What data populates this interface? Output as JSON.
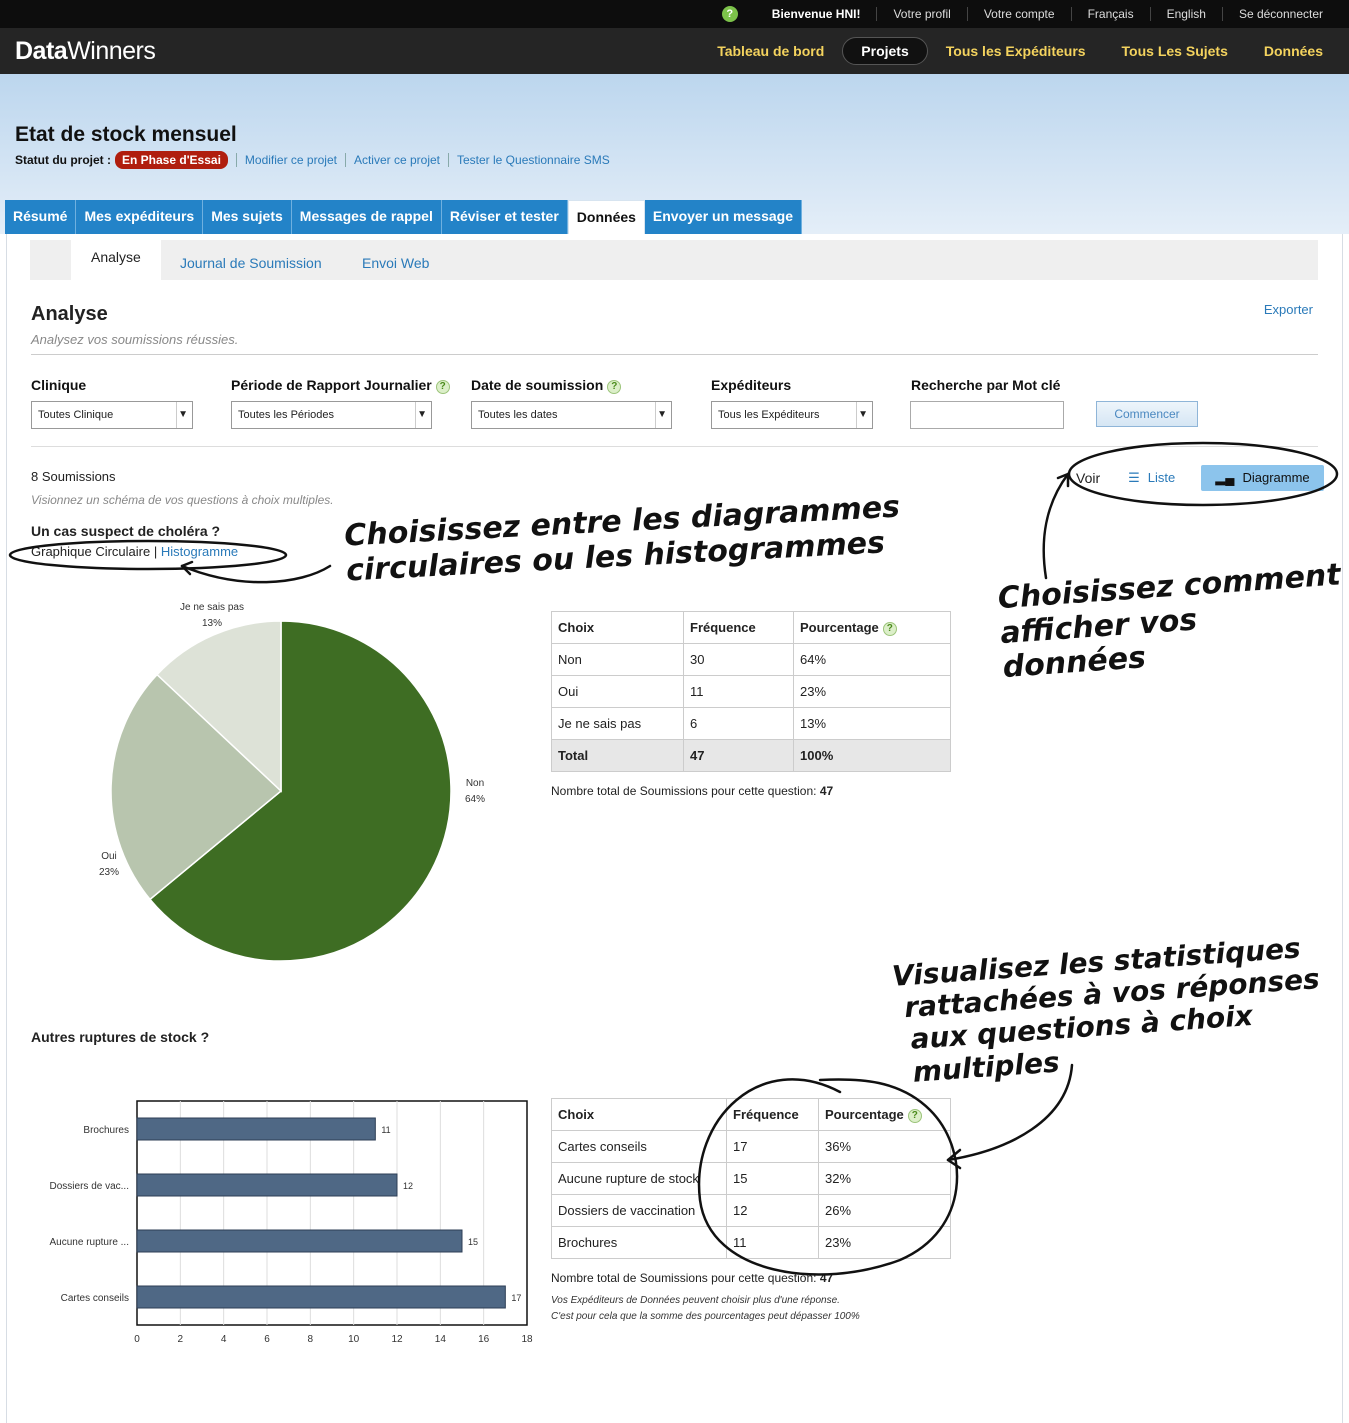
{
  "topbar": {
    "welcome": "Bienvenue HNI!",
    "links": [
      "Votre profil",
      "Votre compte",
      "Français",
      "English",
      "Se déconnecter"
    ]
  },
  "header": {
    "logo_bold": "Data",
    "logo_light": "Winners",
    "nav": [
      "Tableau de bord",
      "Projets",
      "Tous les Expéditeurs",
      "Tous Les Sujets",
      "Données"
    ]
  },
  "project": {
    "title": "Etat de stock mensuel",
    "status_label": "Statut du projet :",
    "status_badge": "En Phase d'Essai",
    "actions": [
      "Modifier ce projet",
      "Activer ce projet",
      "Tester le Questionnaire SMS"
    ]
  },
  "tabs": [
    "Résumé",
    "Mes expéditeurs",
    "Mes sujets",
    "Messages de rappel",
    "Réviser et tester",
    "Données",
    "Envoyer un message"
  ],
  "subtabs": [
    "Analyse",
    "Journal de Soumission",
    "Envoi Web"
  ],
  "analysis": {
    "title": "Analyse",
    "subtitle": "Analysez vos soumissions réussies.",
    "export": "Exporter"
  },
  "filters": {
    "clinique_label": "Clinique",
    "clinique_value": "Toutes Clinique",
    "periode_label": "Période de Rapport Journalier",
    "periode_value": "Toutes les Périodes",
    "date_label": "Date de soumission",
    "date_value": "Toutes les dates",
    "exp_label": "Expéditeurs",
    "exp_value": "Tous les Expéditeurs",
    "keyword_label": "Recherche par Mot clé",
    "keyword_value": "",
    "go_button": "Commencer"
  },
  "summary": {
    "count": "8 Soumissions",
    "hint": "Visionnez un schéma de vos questions à choix multiples.",
    "voir": "Voir",
    "liste": "Liste",
    "diagramme": "Diagramme"
  },
  "q1": {
    "title": "Un cas suspect de choléra ?",
    "toggle_active": "Graphique Circulaire",
    "toggle_link": "Histogramme",
    "headers": [
      "Choix",
      "Fréquence",
      "Pourcentage"
    ],
    "rows": [
      [
        "Non",
        "30",
        "64%"
      ],
      [
        "Oui",
        "11",
        "23%"
      ],
      [
        "Je ne sais pas",
        "6",
        "13%"
      ]
    ],
    "total": [
      "Total",
      "47",
      "100%"
    ],
    "note": "Nombre total de Soumissions pour cette question:",
    "note_value": "47"
  },
  "q2": {
    "title": "Autres ruptures de stock ?",
    "headers": [
      "Choix",
      "Fréquence",
      "Pourcentage"
    ],
    "rows": [
      [
        "Cartes conseils",
        "17",
        "36%"
      ],
      [
        "Aucune rupture de stock",
        "15",
        "32%"
      ],
      [
        "Dossiers de vaccination",
        "12",
        "26%"
      ],
      [
        "Brochures",
        "11",
        "23%"
      ]
    ],
    "note": "Nombre total de Soumissions pour cette question:",
    "note_value": "47",
    "fine1": "Vos Expéditeurs de Données peuvent choisir plus d'une réponse.",
    "fine2": "C'est pour cela que la somme des pourcentages peut dépasser 100%"
  },
  "chart_data": [
    {
      "type": "pie",
      "title": "Un cas suspect de choléra ?",
      "categories": [
        "Non",
        "Oui",
        "Je ne sais pas"
      ],
      "values": [
        64,
        23,
        13
      ],
      "labels": [
        "64%",
        "23%",
        "13%"
      ],
      "colors": [
        "#3e6d23",
        "#b8c5ae",
        "#dde2d7"
      ]
    },
    {
      "type": "bar",
      "orientation": "horizontal",
      "title": "Autres ruptures de stock ?",
      "categories": [
        "Brochures",
        "Dossiers de vac...",
        "Aucune rupture ...",
        "Cartes conseils"
      ],
      "values": [
        11,
        12,
        15,
        17
      ],
      "xlim": [
        0,
        18
      ],
      "xticks": [
        0,
        2,
        4,
        6,
        8,
        10,
        12,
        14,
        16,
        18
      ],
      "color": "#4f6885"
    }
  ],
  "annotations": {
    "a1_line1": "Choisissez entre les diagrammes",
    "a1_line2": "circulaires ou les histogrammes",
    "a2_line1": "Choisissez comment",
    "a2_line2": "afficher vos données",
    "a3_line1": "Visualisez les statistiques",
    "a3_line2": "rattachées à vos réponses",
    "a3_line3": "aux questions à choix multiples"
  }
}
